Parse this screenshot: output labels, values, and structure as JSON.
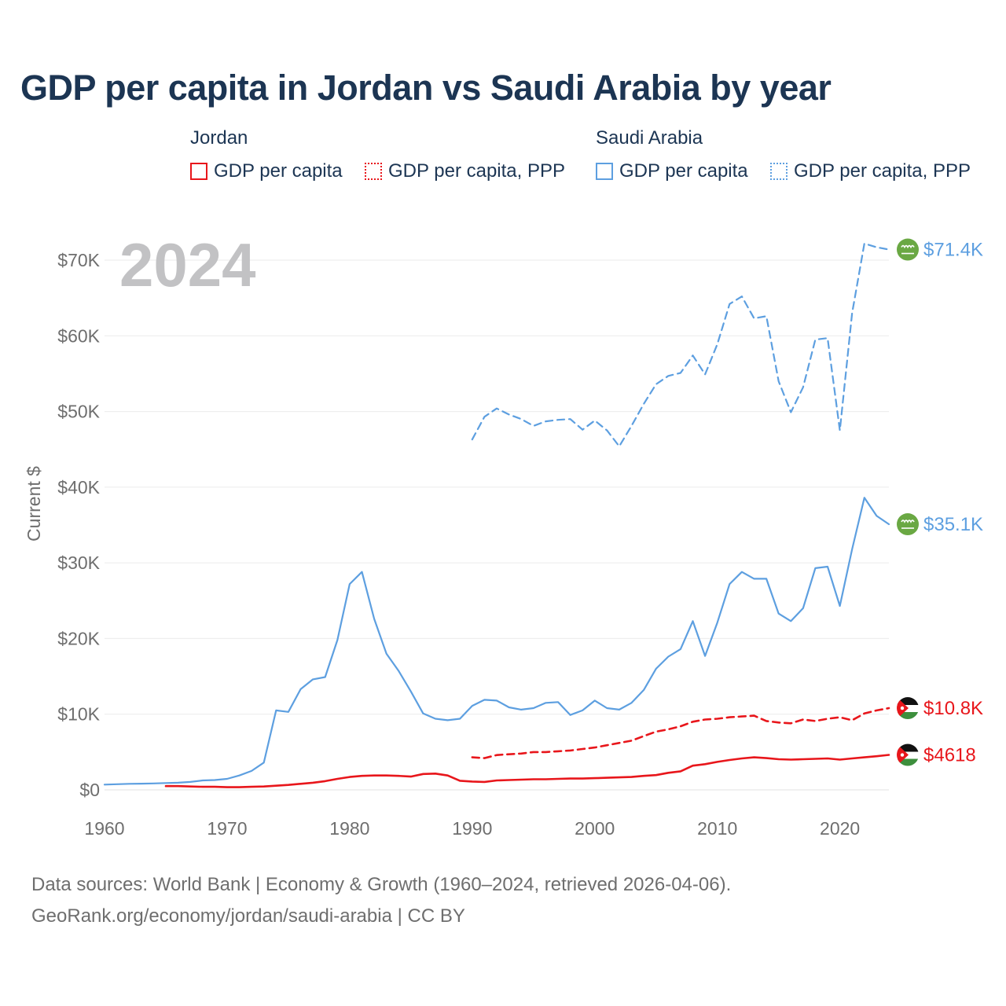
{
  "chart_data": {
    "type": "line",
    "title": "GDP per capita in Jordan vs Saudi Arabia by year",
    "ylabel": "Current $",
    "xlabel": "",
    "year_label": "2024",
    "xlim": [
      1960,
      2024
    ],
    "ylim": [
      0,
      75000
    ],
    "x_ticks": [
      1960,
      1970,
      1980,
      1990,
      2000,
      2010,
      2020
    ],
    "y_ticks": [
      0,
      10000,
      20000,
      30000,
      40000,
      50000,
      60000,
      70000
    ],
    "y_tick_labels": [
      "$0",
      "$10K",
      "$20K",
      "$30K",
      "$40K",
      "$50K",
      "$60K",
      "$70K"
    ],
    "grid": true,
    "legend": {
      "groups": [
        {
          "label": "Jordan",
          "items": [
            {
              "label": "GDP per capita",
              "style": "solid"
            },
            {
              "label": "GDP per capita, PPP",
              "style": "dotted"
            }
          ]
        },
        {
          "label": "Saudi Arabia",
          "items": [
            {
              "label": "GDP per capita",
              "style": "solid"
            },
            {
              "label": "GDP per capita, PPP",
              "style": "dotted"
            }
          ]
        }
      ]
    },
    "series": [
      {
        "name": "Saudi Arabia GDP per capita, PPP",
        "country": "Saudi Arabia",
        "color": "#5d9fe0",
        "dash": true,
        "x": [
          1990,
          1991,
          1992,
          1993,
          1994,
          1995,
          1996,
          1997,
          1998,
          1999,
          2000,
          2001,
          2002,
          2003,
          2004,
          2005,
          2006,
          2007,
          2008,
          2009,
          2010,
          2011,
          2012,
          2013,
          2014,
          2015,
          2016,
          2017,
          2018,
          2019,
          2020,
          2021,
          2022,
          2023,
          2024
        ],
        "values": [
          46300,
          49300,
          50400,
          49600,
          49000,
          48100,
          48700,
          48900,
          49000,
          47600,
          48800,
          47500,
          45400,
          48100,
          51000,
          53600,
          54700,
          55100,
          57400,
          54900,
          58900,
          64200,
          65200,
          62300,
          62600,
          54000,
          49900,
          53200,
          59500,
          59700,
          47500,
          63000,
          72200,
          71700,
          71400
        ],
        "end_label": "$71.4K"
      },
      {
        "name": "Saudi Arabia GDP per capita",
        "country": "Saudi Arabia",
        "color": "#5d9fe0",
        "dash": false,
        "x": [
          1960,
          1961,
          1962,
          1963,
          1964,
          1965,
          1966,
          1967,
          1968,
          1969,
          1970,
          1971,
          1972,
          1973,
          1974,
          1975,
          1976,
          1977,
          1978,
          1979,
          1980,
          1981,
          1982,
          1983,
          1984,
          1985,
          1986,
          1987,
          1988,
          1989,
          1990,
          1991,
          1992,
          1993,
          1994,
          1995,
          1996,
          1997,
          1998,
          1999,
          2000,
          2001,
          2002,
          2003,
          2004,
          2005,
          2006,
          2007,
          2008,
          2009,
          2010,
          2011,
          2012,
          2013,
          2014,
          2015,
          2016,
          2017,
          2018,
          2019,
          2020,
          2021,
          2022,
          2023,
          2024
        ],
        "values": [
          700,
          750,
          800,
          820,
          850,
          900,
          950,
          1050,
          1250,
          1300,
          1450,
          1900,
          2500,
          3600,
          10500,
          10300,
          13300,
          14600,
          14900,
          19800,
          27200,
          28800,
          22600,
          18000,
          15700,
          13000,
          10100,
          9400,
          9200,
          9400,
          11100,
          11900,
          11800,
          10900,
          10600,
          10800,
          11500,
          11600,
          9900,
          10500,
          11800,
          10800,
          10600,
          11500,
          13200,
          16000,
          17600,
          18600,
          22300,
          17700,
          22100,
          27200,
          28800,
          27900,
          27900,
          23300,
          22300,
          24000,
          29300,
          29500,
          24300,
          31800,
          38600,
          36200,
          35100
        ],
        "end_label": "$35.1K"
      },
      {
        "name": "Jordan GDP per capita, PPP",
        "country": "Jordan",
        "color": "#e8161b",
        "dash": true,
        "x": [
          1990,
          1991,
          1992,
          1993,
          1994,
          1995,
          1996,
          1997,
          1998,
          1999,
          2000,
          2001,
          2002,
          2003,
          2004,
          2005,
          2006,
          2007,
          2008,
          2009,
          2010,
          2011,
          2012,
          2013,
          2014,
          2015,
          2016,
          2017,
          2018,
          2019,
          2020,
          2021,
          2022,
          2023,
          2024
        ],
        "values": [
          4300,
          4200,
          4600,
          4700,
          4800,
          5000,
          5000,
          5100,
          5200,
          5400,
          5600,
          5900,
          6200,
          6500,
          7100,
          7700,
          8000,
          8400,
          9000,
          9300,
          9400,
          9600,
          9700,
          9800,
          9100,
          8900,
          8800,
          9300,
          9100,
          9400,
          9600,
          9200,
          10100,
          10500,
          10800
        ],
        "end_label": "$10.8K"
      },
      {
        "name": "Jordan GDP per capita",
        "country": "Jordan",
        "color": "#e8161b",
        "dash": false,
        "x": [
          1965,
          1966,
          1967,
          1968,
          1969,
          1970,
          1971,
          1972,
          1973,
          1974,
          1975,
          1976,
          1977,
          1978,
          1979,
          1980,
          1981,
          1982,
          1983,
          1984,
          1985,
          1986,
          1987,
          1988,
          1989,
          1990,
          1991,
          1992,
          1993,
          1994,
          1995,
          1996,
          1997,
          1998,
          1999,
          2000,
          2001,
          2002,
          2003,
          2004,
          2005,
          2006,
          2007,
          2008,
          2009,
          2010,
          2011,
          2012,
          2013,
          2014,
          2015,
          2016,
          2017,
          2018,
          2019,
          2020,
          2021,
          2022,
          2023,
          2024
        ],
        "values": [
          500,
          500,
          450,
          400,
          400,
          350,
          350,
          400,
          450,
          550,
          650,
          800,
          950,
          1150,
          1450,
          1700,
          1850,
          1900,
          1900,
          1850,
          1750,
          2100,
          2150,
          1900,
          1200,
          1100,
          1050,
          1250,
          1300,
          1350,
          1400,
          1400,
          1450,
          1500,
          1500,
          1550,
          1600,
          1650,
          1700,
          1850,
          1950,
          2250,
          2450,
          3200,
          3400,
          3700,
          3950,
          4150,
          4300,
          4200,
          4050,
          4000,
          4050,
          4100,
          4150,
          4000,
          4150,
          4300,
          4450,
          4618
        ],
        "end_label": "$4618"
      }
    ]
  },
  "footer": {
    "line1": "Data sources: World Bank | Economy & Growth (1960–2024, retrieved 2026-04-06).",
    "line2": "GeoRank.org/economy/jordan/saudi-arabia | CC BY"
  },
  "icons": {
    "saudi_flag": "saudi-arabia-flag-icon",
    "jordan_flag": "jordan-flag-icon"
  },
  "colors": {
    "jordan": "#e8161b",
    "saudi_arabia": "#5d9fe0",
    "title": "#1c3553"
  }
}
